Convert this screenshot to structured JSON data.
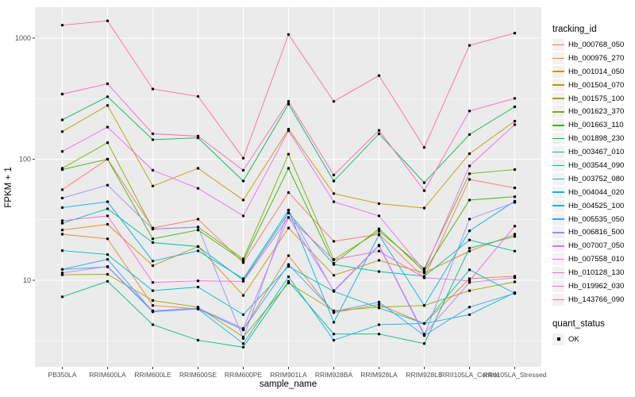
{
  "colors": {
    "panel_bg": "#EBEBEB",
    "grid": "#FFFFFF",
    "tick_text": "#4D4D4D",
    "tick_mark": "#333333",
    "point": "#000000",
    "key_bg": "#F2F2F2"
  },
  "legend": {
    "tracking_title": "tracking_id",
    "quant_title": "quant_status",
    "quant_items": [
      {
        "label": "OK",
        "icon": "black-square-point"
      }
    ]
  },
  "chart_data": {
    "type": "line",
    "title": "",
    "xlabel": "sample_name",
    "ylabel": "FPKM + 1",
    "y_scale": "log10",
    "ylim": [
      1.9,
      1720
    ],
    "grid": "on",
    "legend_position": "right",
    "y_ticks": [
      10,
      100,
      1000
    ],
    "y_tick_labels": [
      "10",
      "100",
      "1000"
    ],
    "y_minor_ticks": [
      3.162,
      31.62,
      316.2
    ],
    "point_color": "#000000",
    "quant_status_all_points": "OK",
    "categories": [
      "PB350LA",
      "RRIM600LA",
      "RRIM600LE",
      "RRIM600SE",
      "RRIM600PE",
      "RRIM901LA",
      "RRIM928BA",
      "RRIM928LA",
      "RRIM928LE",
      "RRII105LA_Control",
      "RRII105LA_Stressed"
    ],
    "series": [
      {
        "name": "Hb_000768_050",
        "color": "#F8766D",
        "values": [
          56,
          100,
          27,
          32,
          14,
          53,
          21,
          24,
          10.5,
          68,
          58
        ]
      },
      {
        "name": "Hb_000976_270",
        "color": "#EA8331",
        "values": [
          24,
          22,
          6.2,
          5.8,
          3.9,
          16,
          5.4,
          6.3,
          4.4,
          10.3,
          10.8
        ]
      },
      {
        "name": "Hb_001014_050",
        "color": "#D89000",
        "values": [
          26,
          29,
          13.2,
          19,
          7.5,
          27,
          11,
          14.6,
          11.5,
          17.4,
          24
        ]
      },
      {
        "name": "Hb_001504_070",
        "color": "#C09B00",
        "values": [
          169,
          278,
          60,
          84,
          46,
          177,
          52,
          43,
          39.5,
          111,
          206
        ]
      },
      {
        "name": "Hb_001575_100",
        "color": "#A3A500",
        "values": [
          11.1,
          11.2,
          6.8,
          6.0,
          3.4,
          9.5,
          5.6,
          6.0,
          6.2,
          8.2,
          9.7
        ]
      },
      {
        "name": "Hb_001623_370",
        "color": "#7CAE00",
        "values": [
          84,
          137,
          26.5,
          27.5,
          15,
          110,
          14.8,
          25.5,
          12.5,
          76,
          82
        ]
      },
      {
        "name": "Hb_001663_110",
        "color": "#39B600",
        "values": [
          82,
          100,
          22,
          26,
          14.5,
          84,
          13.8,
          26.6,
          11.8,
          46,
          49
        ]
      },
      {
        "name": "Hb_001898_230",
        "color": "#00BB4E",
        "values": [
          211,
          328,
          145,
          150,
          66,
          285,
          66,
          162,
          64,
          160,
          271
        ]
      },
      {
        "name": "Hb_003467_010",
        "color": "#00BF7D",
        "values": [
          7.3,
          9.8,
          4.3,
          3.2,
          2.8,
          9.8,
          3.6,
          3.6,
          3.0,
          18.4,
          23
        ]
      },
      {
        "name": "Hb_003544_090",
        "color": "#00C1A3",
        "values": [
          29.6,
          39,
          20.5,
          19,
          10,
          36,
          13.5,
          11.8,
          10.8,
          21.5,
          17.4
        ]
      },
      {
        "name": "Hb_003752_080",
        "color": "#00BFC4",
        "values": [
          17.6,
          16.3,
          8.2,
          8.8,
          5.2,
          13,
          8.1,
          5.9,
          4.4,
          12.2,
          7.8
        ]
      },
      {
        "name": "Hb_004044_020",
        "color": "#00BAE0",
        "values": [
          12.3,
          12.9,
          5.5,
          5.8,
          3.0,
          10.7,
          3.2,
          4.3,
          4.4,
          5.2,
          7.9
        ]
      },
      {
        "name": "Hb_004525_100",
        "color": "#00B0F6",
        "values": [
          39.9,
          44.5,
          14.4,
          17.5,
          10.3,
          38,
          4.5,
          23.7,
          6.2,
          25.6,
          45
        ]
      },
      {
        "name": "Hb_005535_050",
        "color": "#35A2FF",
        "values": [
          12.3,
          14.9,
          5.5,
          5.8,
          3.9,
          13.5,
          5.5,
          6.6,
          3.5,
          6.0,
          7.8
        ]
      },
      {
        "name": "Hb_006816_500",
        "color": "#9590FF",
        "values": [
          47.8,
          61,
          26.5,
          27.5,
          3.3,
          38,
          8.1,
          19.3,
          3.5,
          32,
          44
        ]
      },
      {
        "name": "Hb_007007_050",
        "color": "#C77CFF",
        "values": [
          11.5,
          13.0,
          5.6,
          5.9,
          4.0,
          33,
          8.2,
          19.5,
          3.6,
          9.6,
          10.5
        ]
      },
      {
        "name": "Hb_007558_010",
        "color": "#E76BF3",
        "values": [
          116,
          184,
          81,
          57.5,
          34,
          172,
          44.5,
          34,
          12,
          88,
          193
        ]
      },
      {
        "name": "Hb_010128_130",
        "color": "#FA62DB",
        "values": [
          31.1,
          34,
          9.6,
          9.9,
          9.8,
          33,
          14.8,
          17.4,
          10.5,
          9.9,
          28
        ]
      },
      {
        "name": "Hb_019962_030",
        "color": "#FF62BC",
        "values": [
          345,
          420,
          162,
          155,
          81,
          300,
          74,
          173,
          55,
          250,
          318
        ]
      },
      {
        "name": "Hb_143766_090",
        "color": "#FF6A98",
        "values": [
          1280,
          1390,
          380,
          330,
          102,
          1070,
          300,
          490,
          125,
          870,
          1100
        ]
      }
    ]
  }
}
